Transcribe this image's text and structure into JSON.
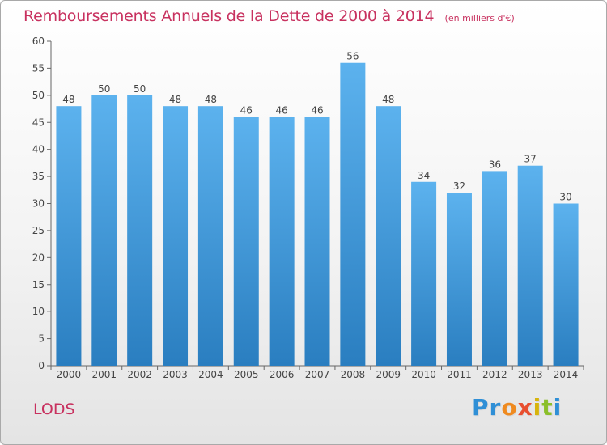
{
  "title": {
    "main": "Remboursements Annuels de la Dette de 2000 à 2014",
    "unit": "(en milliers d'€)"
  },
  "commune": "LODS",
  "logo": {
    "text": "Proxiti"
  },
  "colors": {
    "title": "#c8315f",
    "bar_top": "#5cb2ee",
    "bar_bottom": "#2a7ec0"
  },
  "chart_data": {
    "type": "bar",
    "title": "Remboursements Annuels de la Dette de 2000 à 2014",
    "xlabel": "",
    "ylabel": "",
    "categories": [
      "2000",
      "2001",
      "2002",
      "2003",
      "2004",
      "2005",
      "2006",
      "2007",
      "2008",
      "2009",
      "2010",
      "2011",
      "2012",
      "2013",
      "2014"
    ],
    "values": [
      48,
      50,
      50,
      48,
      48,
      46,
      46,
      46,
      56,
      48,
      34,
      32,
      36,
      37,
      30
    ],
    "ylim": [
      0,
      60
    ],
    "yticks": [
      0,
      5,
      10,
      15,
      20,
      25,
      30,
      35,
      40,
      45,
      50,
      55,
      60
    ],
    "grid": false,
    "legend": "none"
  }
}
